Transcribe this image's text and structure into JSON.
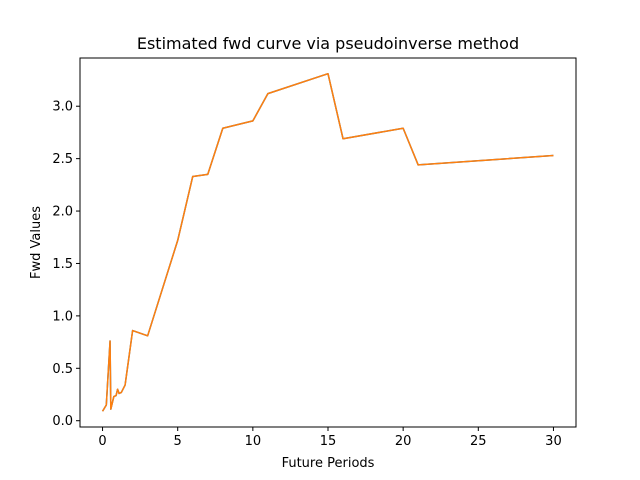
{
  "chart_data": {
    "type": "line",
    "title": "Estimated fwd curve via pseudoinverse method",
    "xlabel": "Future Periods",
    "ylabel": "Fwd Values",
    "xlim": [
      -1.5,
      31.5
    ],
    "ylim": [
      -0.06,
      3.46
    ],
    "xticks": [
      0,
      5,
      10,
      15,
      20,
      25,
      30
    ],
    "xtick_labels": [
      "0",
      "5",
      "10",
      "15",
      "20",
      "25",
      "30"
    ],
    "yticks": [
      0.0,
      0.5,
      1.0,
      1.5,
      2.0,
      2.5,
      3.0
    ],
    "ytick_labels": [
      "0.0",
      "0.5",
      "1.0",
      "1.5",
      "2.0",
      "2.5",
      "3.0"
    ],
    "grid": false,
    "series": [
      {
        "color": "#1f77b4",
        "points": [
          [
            0.0,
            0.09
          ],
          [
            0.25,
            0.15
          ],
          [
            0.5,
            0.76
          ],
          [
            0.55,
            0.11
          ],
          [
            0.75,
            0.23
          ],
          [
            0.9,
            0.24
          ],
          [
            1.0,
            0.3
          ],
          [
            1.1,
            0.26
          ],
          [
            1.25,
            0.27
          ],
          [
            1.5,
            0.34
          ],
          [
            2.0,
            0.86
          ],
          [
            3.0,
            0.81
          ],
          [
            5.0,
            1.72
          ],
          [
            6.0,
            2.33
          ],
          [
            7.0,
            2.35
          ],
          [
            8.0,
            2.79
          ],
          [
            10.0,
            2.86
          ],
          [
            11.0,
            3.12
          ],
          [
            15.0,
            3.31
          ],
          [
            16.0,
            2.69
          ],
          [
            20.0,
            2.79
          ],
          [
            21.0,
            2.44
          ],
          [
            30.0,
            2.53
          ]
        ]
      },
      {
        "color": "#ff7f0e",
        "points": [
          [
            0.0,
            0.09
          ],
          [
            0.25,
            0.15
          ],
          [
            0.5,
            0.76
          ],
          [
            0.55,
            0.11
          ],
          [
            0.75,
            0.23
          ],
          [
            0.9,
            0.24
          ],
          [
            1.0,
            0.3
          ],
          [
            1.1,
            0.26
          ],
          [
            1.25,
            0.27
          ],
          [
            1.5,
            0.34
          ],
          [
            2.0,
            0.86
          ],
          [
            3.0,
            0.81
          ],
          [
            5.0,
            1.72
          ],
          [
            6.0,
            2.33
          ],
          [
            7.0,
            2.35
          ],
          [
            8.0,
            2.79
          ],
          [
            10.0,
            2.86
          ],
          [
            11.0,
            3.12
          ],
          [
            15.0,
            3.31
          ],
          [
            16.0,
            2.69
          ],
          [
            20.0,
            2.79
          ],
          [
            21.0,
            2.44
          ],
          [
            30.0,
            2.53
          ]
        ]
      }
    ]
  }
}
